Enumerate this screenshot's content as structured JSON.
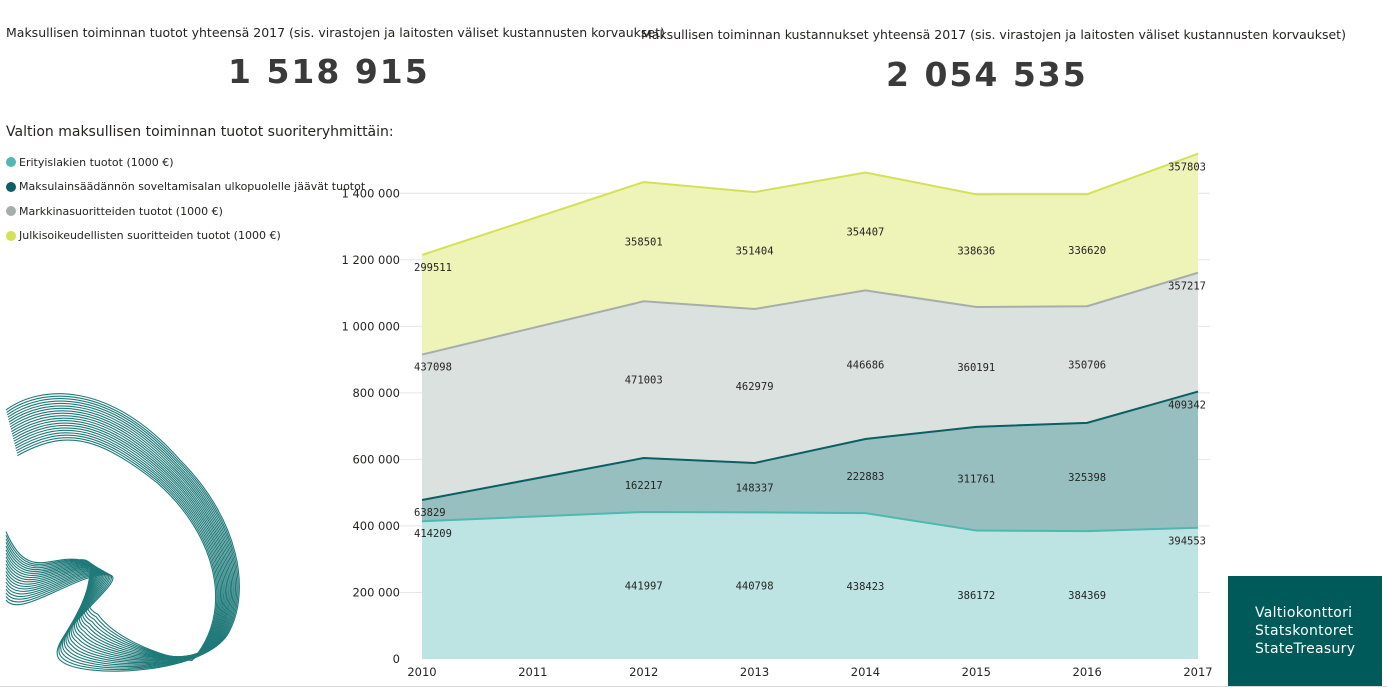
{
  "kpi_revenue": {
    "title": "Maksullisen toiminnan tuotot yhteensä 2017 (sis. virastojen ja laitosten väliset kustannusten korvaukset)",
    "value": "1 518 915"
  },
  "kpi_costs": {
    "title": "Maksullisen toiminnan kustannukset yhteensä 2017 (sis. virastojen ja laitosten väliset kustannusten korvaukset)",
    "value": "2 054 535"
  },
  "logo": {
    "line1": "Valtiokonttori",
    "line2": "Statskontoret",
    "line3": "StateTreasury"
  },
  "chart_data": {
    "type": "area",
    "stacked": true,
    "title": "Valtion maksullisen toiminnan tuotot suoriteryhmittäin:",
    "x": [
      2010,
      2011,
      2012,
      2013,
      2014,
      2015,
      2016,
      2017
    ],
    "x_tick_labels": [
      "2010",
      "2011",
      "2012",
      "2013",
      "2014",
      "2015",
      "2016",
      "2017"
    ],
    "ylim": [
      0,
      1500000
    ],
    "y_ticks": [
      0,
      200000,
      400000,
      600000,
      800000,
      1000000,
      1200000,
      1400000
    ],
    "y_tick_labels": [
      "0",
      "200 000",
      "400 000",
      "600 000",
      "800 000",
      "1 000 000",
      "1 200 000",
      "1 400 000"
    ],
    "grid": true,
    "series": [
      {
        "name": "Erityislakien tuotot (1000 €)",
        "color": "#4fb8b0",
        "fill": "#bde4e2",
        "values": [
          414209,
          null,
          441997,
          440798,
          438423,
          386172,
          384369,
          394553
        ],
        "labels": [
          "414209",
          null,
          "441997",
          "440798",
          "438423",
          "386172",
          "384369",
          "394553"
        ]
      },
      {
        "name": "Maksulainsäädännön soveltamisalan ulkopuolelle jäävät tuotot",
        "color": "#0b5f63",
        "fill": "#97bfc0",
        "values": [
          63829,
          null,
          162217,
          148337,
          222883,
          311761,
          325398,
          409342
        ],
        "labels": [
          "63829",
          null,
          "162217",
          "148337",
          "222883",
          "311761",
          "325398",
          "409342"
        ]
      },
      {
        "name": "Markkinasuoritteiden tuotot (1000 €)",
        "color": "#a6aeac",
        "fill": "#dbe1df",
        "values": [
          437098,
          null,
          471003,
          462979,
          446686,
          360191,
          350706,
          357217
        ],
        "labels": [
          "437098",
          null,
          "471003",
          "462979",
          "446686",
          "360191",
          "350706",
          "357217"
        ]
      },
      {
        "name": "Julkisoikeudellisten suoritteiden tuotot (1000 €)",
        "color": "#d4e157",
        "fill": "#eef3b8",
        "values": [
          299511,
          null,
          358501,
          351404,
          354407,
          338636,
          336620,
          357803
        ],
        "labels": [
          "299511",
          null,
          "358501",
          "351404",
          "354407",
          "338636",
          "336620",
          "357803"
        ]
      }
    ]
  }
}
